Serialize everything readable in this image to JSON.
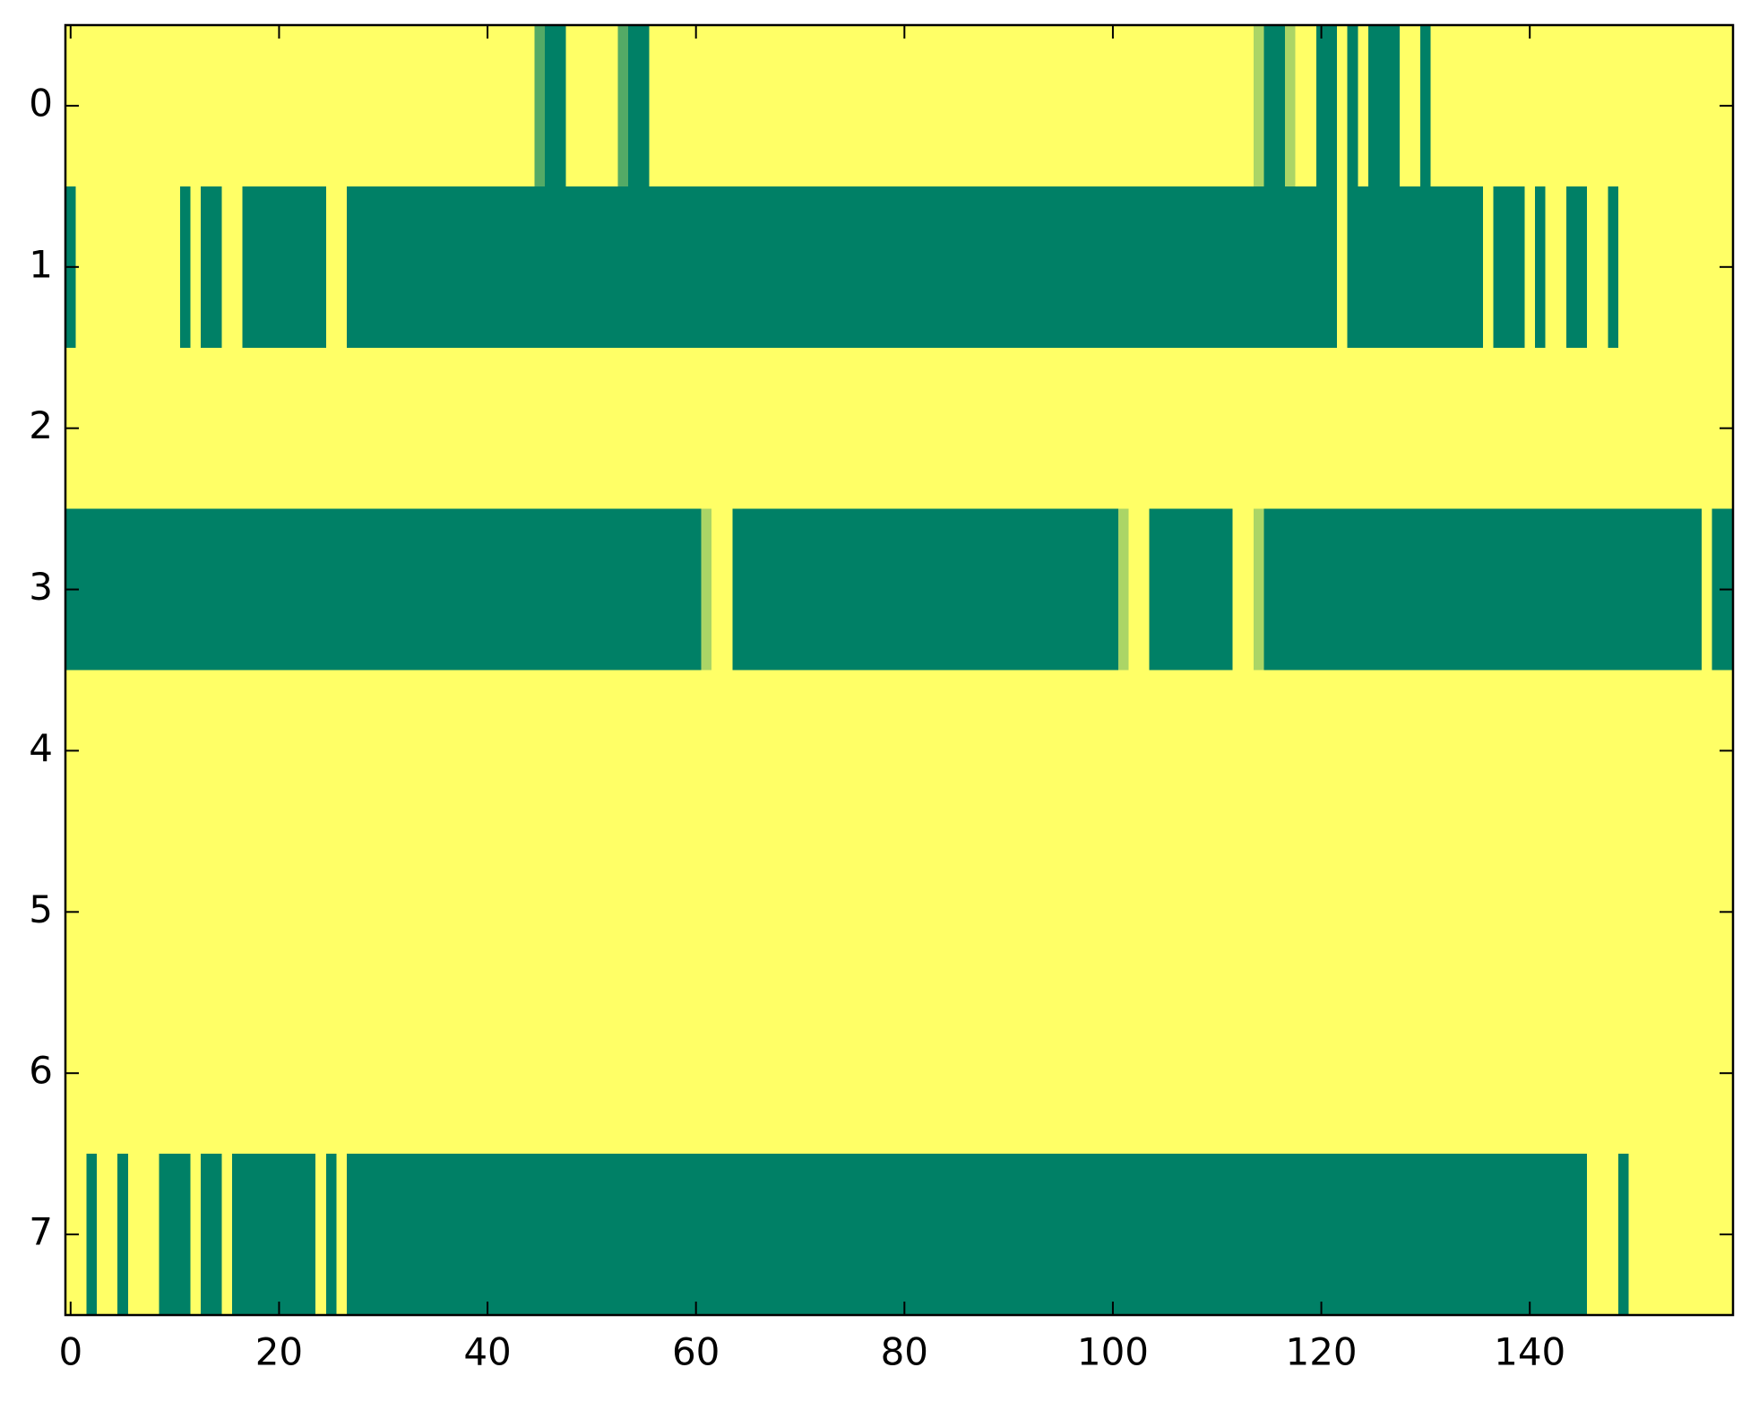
{
  "chart_data": {
    "type": "heatmap",
    "colormap": "summer",
    "clim": [
      0,
      1
    ],
    "xlim": [
      -0.5,
      159.5
    ],
    "ylim": [
      7.5,
      -0.5
    ],
    "xticks": [
      0,
      20,
      40,
      60,
      80,
      100,
      120,
      140
    ],
    "yticks": [
      0,
      1,
      2,
      3,
      4,
      5,
      6,
      7
    ],
    "matrix": [
      [
        1,
        1,
        1,
        1,
        1,
        1,
        1,
        1,
        1,
        1,
        1,
        1,
        1,
        1,
        1,
        1,
        1,
        1,
        1,
        1,
        1,
        1,
        1,
        1,
        1,
        1,
        1,
        1,
        1,
        1,
        1,
        1,
        1,
        1,
        1,
        1,
        1,
        1,
        1,
        1,
        1,
        1,
        1,
        1,
        1,
        0.33,
        0,
        0,
        1,
        1,
        1,
        1,
        1,
        0.33,
        0,
        0,
        1,
        1,
        1,
        1,
        1,
        1,
        1,
        1,
        1,
        1,
        1,
        1,
        1,
        1,
        1,
        1,
        1,
        1,
        1,
        1,
        1,
        1,
        1,
        1,
        1,
        1,
        1,
        1,
        1,
        1,
        1,
        1,
        1,
        1,
        1,
        1,
        1,
        1,
        1,
        1,
        1,
        1,
        1,
        1,
        1,
        1,
        1,
        1,
        1,
        1,
        1,
        1,
        1,
        1,
        1,
        1,
        1,
        1,
        0.67,
        0,
        0,
        0.67,
        1,
        1,
        0,
        0,
        1,
        0,
        1,
        0,
        0,
        0,
        1,
        1,
        0,
        1,
        1,
        1,
        1,
        1,
        1,
        1,
        1,
        1,
        1,
        1,
        1,
        1,
        1,
        1,
        1,
        1,
        1,
        1,
        1,
        1,
        1,
        1,
        1,
        1,
        1,
        1,
        1,
        1
      ],
      [
        0,
        1,
        1,
        1,
        1,
        1,
        1,
        1,
        1,
        1,
        1,
        0,
        1,
        0,
        0,
        1,
        1,
        0,
        0,
        0,
        0,
        0,
        0,
        0,
        0,
        1,
        1,
        0,
        0,
        0,
        0,
        0,
        0,
        0,
        0,
        0,
        0,
        0,
        0,
        0,
        0,
        0,
        0,
        0,
        0,
        0,
        0,
        0,
        0,
        0,
        0,
        0,
        0,
        0,
        0,
        0,
        0,
        0,
        0,
        0,
        0,
        0,
        0,
        0,
        0,
        0,
        0,
        0,
        0,
        0,
        0,
        0,
        0,
        0,
        0,
        0,
        0,
        0,
        0,
        0,
        0,
        0,
        0,
        0,
        0,
        0,
        0,
        0,
        0,
        0,
        0,
        0,
        0,
        0,
        0,
        0,
        0,
        0,
        0,
        0,
        0,
        0,
        0,
        0,
        0,
        0,
        0,
        0,
        0,
        0,
        0,
        0,
        0,
        0,
        0,
        0,
        0,
        0,
        0,
        0,
        0,
        0,
        1,
        0,
        0,
        0,
        0,
        0,
        0,
        0,
        0,
        0,
        0,
        0,
        0,
        0,
        1,
        0,
        0,
        0,
        1,
        0,
        1,
        1,
        0,
        0,
        1,
        1,
        0,
        1,
        1,
        1,
        1,
        1,
        1,
        1,
        1,
        1,
        1,
        1
      ],
      [
        1,
        1,
        1,
        1,
        1,
        1,
        1,
        1,
        1,
        1,
        1,
        1,
        1,
        1,
        1,
        1,
        1,
        1,
        1,
        1,
        1,
        1,
        1,
        1,
        1,
        1,
        1,
        1,
        1,
        1,
        1,
        1,
        1,
        1,
        1,
        1,
        1,
        1,
        1,
        1,
        1,
        1,
        1,
        1,
        1,
        1,
        1,
        1,
        1,
        1,
        1,
        1,
        1,
        1,
        1,
        1,
        1,
        1,
        1,
        1,
        1,
        1,
        1,
        1,
        1,
        1,
        1,
        1,
        1,
        1,
        1,
        1,
        1,
        1,
        1,
        1,
        1,
        1,
        1,
        1,
        1,
        1,
        1,
        1,
        1,
        1,
        1,
        1,
        1,
        1,
        1,
        1,
        1,
        1,
        1,
        1,
        1,
        1,
        1,
        1,
        1,
        1,
        1,
        1,
        1,
        1,
        1,
        1,
        1,
        1,
        1,
        1,
        1,
        1,
        1,
        1,
        1,
        1,
        1,
        1,
        1,
        1,
        1,
        1,
        1,
        1,
        1,
        1,
        1,
        1,
        1,
        1,
        1,
        1,
        1,
        1,
        1,
        1,
        1,
        1,
        1,
        1,
        1,
        1,
        1,
        1,
        1,
        1,
        1,
        1,
        1,
        1,
        1,
        1,
        1,
        1,
        1,
        1,
        1,
        1
      ],
      [
        0,
        0,
        0,
        0,
        0,
        0,
        0,
        0,
        0,
        0,
        0,
        0,
        0,
        0,
        0,
        0,
        0,
        0,
        0,
        0,
        0,
        0,
        0,
        0,
        0,
        0,
        0,
        0,
        0,
        0,
        0,
        0,
        0,
        0,
        0,
        0,
        0,
        0,
        0,
        0,
        0,
        0,
        0,
        0,
        0,
        0,
        0,
        0,
        0,
        0,
        0,
        0,
        0,
        0,
        0,
        0,
        0,
        0,
        0,
        0,
        0,
        0.67,
        1,
        1,
        0,
        0,
        0,
        0,
        0,
        0,
        0,
        0,
        0,
        0,
        0,
        0,
        0,
        0,
        0,
        0,
        0,
        0,
        0,
        0,
        0,
        0,
        0,
        0,
        0,
        0,
        0,
        0,
        0,
        0,
        0,
        0,
        0,
        0,
        0,
        0,
        0,
        0.67,
        1,
        1,
        0,
        0,
        0,
        0,
        0,
        0,
        0,
        0,
        1,
        1,
        0.67,
        0,
        0,
        0,
        0,
        0,
        0,
        0,
        0,
        0,
        0,
        0,
        0,
        0,
        0,
        0,
        0,
        0,
        0,
        0,
        0,
        0,
        0,
        0,
        0,
        0,
        0,
        0,
        0,
        0,
        0,
        0,
        0,
        0,
        0,
        0,
        0,
        0,
        0,
        0,
        0,
        0,
        0,
        1,
        0,
        0
      ],
      [
        1,
        1,
        1,
        1,
        1,
        1,
        1,
        1,
        1,
        1,
        1,
        1,
        1,
        1,
        1,
        1,
        1,
        1,
        1,
        1,
        1,
        1,
        1,
        1,
        1,
        1,
        1,
        1,
        1,
        1,
        1,
        1,
        1,
        1,
        1,
        1,
        1,
        1,
        1,
        1,
        1,
        1,
        1,
        1,
        1,
        1,
        1,
        1,
        1,
        1,
        1,
        1,
        1,
        1,
        1,
        1,
        1,
        1,
        1,
        1,
        1,
        1,
        1,
        1,
        1,
        1,
        1,
        1,
        1,
        1,
        1,
        1,
        1,
        1,
        1,
        1,
        1,
        1,
        1,
        1,
        1,
        1,
        1,
        1,
        1,
        1,
        1,
        1,
        1,
        1,
        1,
        1,
        1,
        1,
        1,
        1,
        1,
        1,
        1,
        1,
        1,
        1,
        1,
        1,
        1,
        1,
        1,
        1,
        1,
        1,
        1,
        1,
        1,
        1,
        1,
        1,
        1,
        1,
        1,
        1,
        1,
        1,
        1,
        1,
        1,
        1,
        1,
        1,
        1,
        1,
        1,
        1,
        1,
        1,
        1,
        1,
        1,
        1,
        1,
        1,
        1,
        1,
        1,
        1,
        1,
        1,
        1,
        1,
        1,
        1,
        1,
        1,
        1,
        1,
        1,
        1,
        1,
        1,
        1,
        1
      ],
      [
        1,
        1,
        1,
        1,
        1,
        1,
        1,
        1,
        1,
        1,
        1,
        1,
        1,
        1,
        1,
        1,
        1,
        1,
        1,
        1,
        1,
        1,
        1,
        1,
        1,
        1,
        1,
        1,
        1,
        1,
        1,
        1,
        1,
        1,
        1,
        1,
        1,
        1,
        1,
        1,
        1,
        1,
        1,
        1,
        1,
        1,
        1,
        1,
        1,
        1,
        1,
        1,
        1,
        1,
        1,
        1,
        1,
        1,
        1,
        1,
        1,
        1,
        1,
        1,
        1,
        1,
        1,
        1,
        1,
        1,
        1,
        1,
        1,
        1,
        1,
        1,
        1,
        1,
        1,
        1,
        1,
        1,
        1,
        1,
        1,
        1,
        1,
        1,
        1,
        1,
        1,
        1,
        1,
        1,
        1,
        1,
        1,
        1,
        1,
        1,
        1,
        1,
        1,
        1,
        1,
        1,
        1,
        1,
        1,
        1,
        1,
        1,
        1,
        1,
        1,
        1,
        1,
        1,
        1,
        1,
        1,
        1,
        1,
        1,
        1,
        1,
        1,
        1,
        1,
        1,
        1,
        1,
        1,
        1,
        1,
        1,
        1,
        1,
        1,
        1,
        1,
        1,
        1,
        1,
        1,
        1,
        1,
        1,
        1,
        1,
        1,
        1,
        1,
        1,
        1,
        1,
        1,
        1,
        1,
        1
      ],
      [
        1,
        1,
        1,
        1,
        1,
        1,
        1,
        1,
        1,
        1,
        1,
        1,
        1,
        1,
        1,
        1,
        1,
        1,
        1,
        1,
        1,
        1,
        1,
        1,
        1,
        1,
        1,
        1,
        1,
        1,
        1,
        1,
        1,
        1,
        1,
        1,
        1,
        1,
        1,
        1,
        1,
        1,
        1,
        1,
        1,
        1,
        1,
        1,
        1,
        1,
        1,
        1,
        1,
        1,
        1,
        1,
        1,
        1,
        1,
        1,
        1,
        1,
        1,
        1,
        1,
        1,
        1,
        1,
        1,
        1,
        1,
        1,
        1,
        1,
        1,
        1,
        1,
        1,
        1,
        1,
        1,
        1,
        1,
        1,
        1,
        1,
        1,
        1,
        1,
        1,
        1,
        1,
        1,
        1,
        1,
        1,
        1,
        1,
        1,
        1,
        1,
        1,
        1,
        1,
        1,
        1,
        1,
        1,
        1,
        1,
        1,
        1,
        1,
        1,
        1,
        1,
        1,
        1,
        1,
        1,
        1,
        1,
        1,
        1,
        1,
        1,
        1,
        1,
        1,
        1,
        1,
        1,
        1,
        1,
        1,
        1,
        1,
        1,
        1,
        1,
        1,
        1,
        1,
        1,
        1,
        1,
        1,
        1,
        1,
        1,
        1,
        1,
        1,
        1,
        1,
        1,
        1,
        1,
        1,
        1
      ],
      [
        1,
        1,
        0,
        1,
        1,
        0,
        1,
        1,
        1,
        0,
        0,
        0,
        1,
        0,
        0,
        1,
        0,
        0,
        0,
        0,
        0,
        0,
        0,
        0,
        1,
        0,
        1,
        0,
        0,
        0,
        0,
        0,
        0,
        0,
        0,
        0,
        0,
        0,
        0,
        0,
        0,
        0,
        0,
        0,
        0,
        0,
        0,
        0,
        0,
        0,
        0,
        0,
        0,
        0,
        0,
        0,
        0,
        0,
        0,
        0,
        0,
        0,
        0,
        0,
        0,
        0,
        0,
        0,
        0,
        0,
        0,
        0,
        0,
        0,
        0,
        0,
        0,
        0,
        0,
        0,
        0,
        0,
        0,
        0,
        0,
        0,
        0,
        0,
        0,
        0,
        0,
        0,
        0,
        0,
        0,
        0,
        0,
        0,
        0,
        0,
        0,
        0,
        0,
        0,
        0,
        0,
        0,
        0,
        0,
        0,
        0,
        0,
        0,
        0,
        0,
        0,
        0,
        0,
        0,
        0,
        0,
        0,
        0,
        0,
        0,
        0,
        0,
        0,
        0,
        0,
        0,
        0,
        0,
        0,
        0,
        0,
        0,
        0,
        0,
        0,
        0,
        0,
        0,
        0,
        0,
        0,
        1,
        1,
        1,
        0,
        1,
        1,
        1,
        1,
        1,
        1,
        1,
        1,
        1,
        1
      ]
    ]
  }
}
